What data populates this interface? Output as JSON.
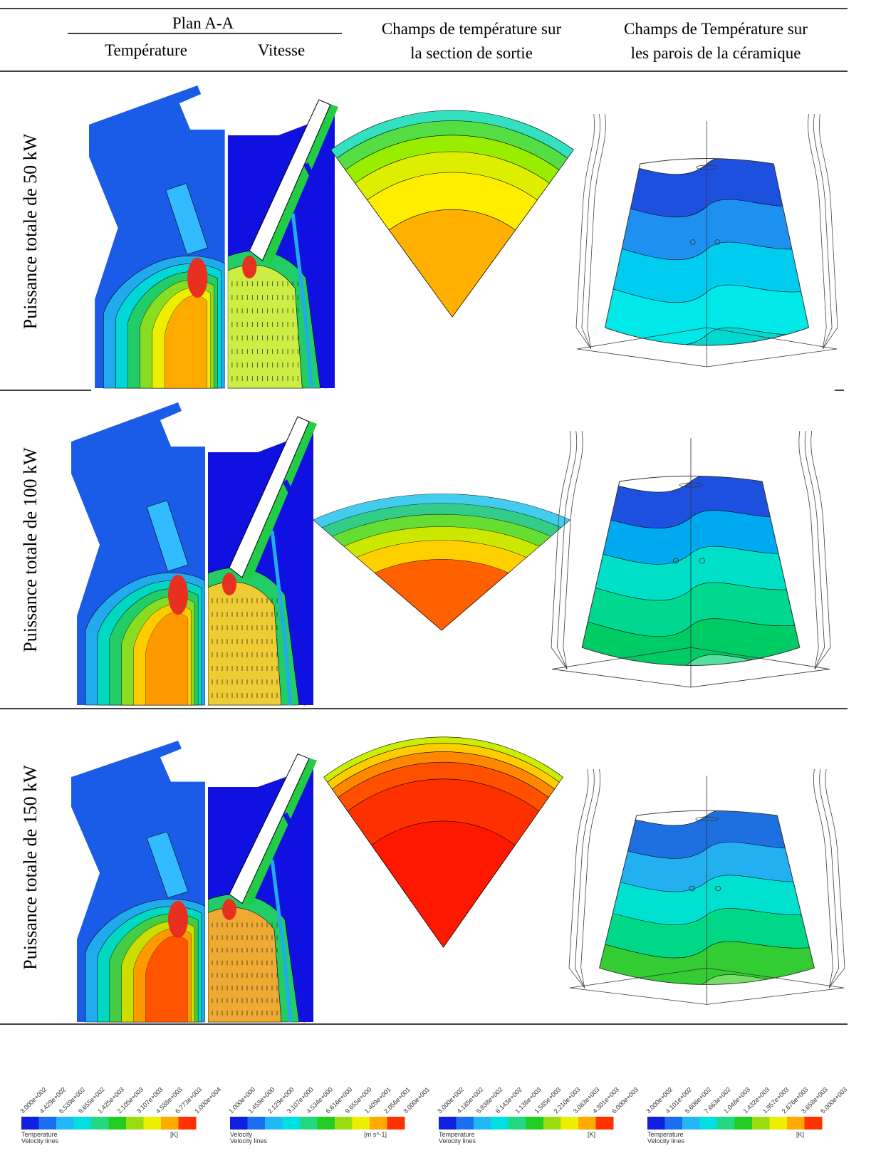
{
  "header": {
    "plan": "Plan A-A",
    "temperature": "Température",
    "velocity": "Vitesse",
    "outlet": [
      "Champs de température sur",
      "la section de sortie"
    ],
    "walls": [
      "Champs de Température sur",
      "les parois de la céramique"
    ]
  },
  "rows": [
    {
      "label": "Puissance totale de 50 kW"
    },
    {
      "label": "Puissance totale de 100 kW"
    },
    {
      "label": "Puissance totale de 150 kW"
    }
  ],
  "legends": [
    {
      "title": "Temperature",
      "subtitle": "Velocity lines",
      "unit": "[K]",
      "ticks": [
        "3.000e+002",
        "4.429e+002",
        "6.539e+002",
        "9.655e+002",
        "1.425e+003",
        "2.105e+003",
        "3.107e+003",
        "4.588e+003",
        "6.773e+003",
        "1.000e+004"
      ]
    },
    {
      "title": "Velocity",
      "subtitle": "Velocity lines",
      "unit": "[m s^-1]",
      "ticks": [
        "1.000e+000",
        "1.459e+000",
        "2.129e+000",
        "3.107e+000",
        "4.534e+000",
        "6.616e+000",
        "9.655e+000",
        "1.409e+001",
        "2.056e+001",
        "3.000e+001"
      ]
    },
    {
      "title": "Temperature",
      "subtitle": "Velocity lines",
      "unit": "[K]",
      "ticks": [
        "3.000e+002",
        "4.185e+002",
        "5.838e+002",
        "8.143e+002",
        "1.136e+003",
        "1.585e+003",
        "2.210e+003",
        "3.083e+003",
        "4.301e+003",
        "6.000e+003"
      ]
    },
    {
      "title": "Temperature",
      "subtitle": "Velocity lines",
      "unit": "[K]",
      "ticks": [
        "3.000e+002",
        "4.101e+002",
        "5.606e+002",
        "7.663e+002",
        "1.048e+003",
        "1.432e+003",
        "1.957e+003",
        "2.676e+003",
        "3.658e+003",
        "5.000e+003"
      ]
    }
  ]
}
